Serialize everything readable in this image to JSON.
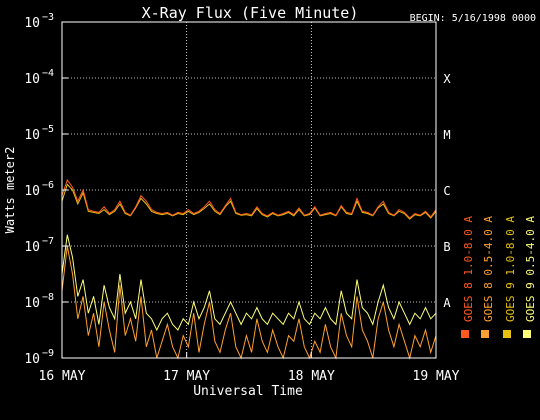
{
  "chart_data": {
    "type": "line",
    "title": "X-Ray Flux (Five Minute)",
    "begin_label": "BEGIN: 5/16/1998 0000",
    "ylabel": "Watts meter2",
    "xlabel": "Universal Time",
    "ylog": true,
    "ylim_exponents": [
      -9,
      -3
    ],
    "y_tick_labels": [
      {
        "exp": -3,
        "text": "10",
        "sup": "−3"
      },
      {
        "exp": -4,
        "text": "10",
        "sup": "−4"
      },
      {
        "exp": -5,
        "text": "10",
        "sup": "−5"
      },
      {
        "exp": -6,
        "text": "10",
        "sup": "−6"
      },
      {
        "exp": -7,
        "text": "10",
        "sup": "−7"
      },
      {
        "exp": -8,
        "text": "10",
        "sup": "−8"
      },
      {
        "exp": -9,
        "text": "10",
        "sup": "−9"
      }
    ],
    "x_tick_labels": [
      "16 MAY",
      "17 MAY",
      "18 MAY",
      "19 MAY"
    ],
    "flare_classes": [
      {
        "label": "X",
        "exp": -4
      },
      {
        "label": "M",
        "exp": -5
      },
      {
        "label": "C",
        "exp": -6
      },
      {
        "label": "B",
        "exp": -7
      },
      {
        "label": "A",
        "exp": -8
      }
    ],
    "grid": true,
    "legend_position": "right",
    "series": [
      {
        "name": "GOES 8 1.0-8.0 A",
        "color": "#ff5a1e",
        "band": "long",
        "sat": "8",
        "log_values": [
          -6.1,
          -5.82,
          -5.95,
          -6.2,
          -6.0,
          -6.35,
          -6.38,
          -6.4,
          -6.3,
          -6.42,
          -6.35,
          -6.2,
          -6.4,
          -6.45,
          -6.3,
          -6.1,
          -6.2,
          -6.35,
          -6.4,
          -6.42,
          -6.4,
          -6.45,
          -6.4,
          -6.42,
          -6.35,
          -6.42,
          -6.38,
          -6.3,
          -6.2,
          -6.35,
          -6.42,
          -6.28,
          -6.15,
          -6.4,
          -6.44,
          -6.42,
          -6.44,
          -6.3,
          -6.42,
          -6.46,
          -6.4,
          -6.45,
          -6.42,
          -6.38,
          -6.44,
          -6.32,
          -6.45,
          -6.42,
          -6.3,
          -6.45,
          -6.42,
          -6.4,
          -6.45,
          -6.28,
          -6.4,
          -6.42,
          -6.15,
          -6.38,
          -6.4,
          -6.45,
          -6.3,
          -6.2,
          -6.4,
          -6.45,
          -6.35,
          -6.4,
          -6.5,
          -6.42,
          -6.45,
          -6.38,
          -6.48,
          -6.35
        ]
      },
      {
        "name": "GOES 8 0.5-4.0 A",
        "color": "#ffa032",
        "band": "short",
        "sat": "8",
        "log_values": [
          -7.8,
          -7.0,
          -7.5,
          -8.3,
          -7.9,
          -8.6,
          -8.2,
          -8.8,
          -8.0,
          -8.5,
          -8.9,
          -7.7,
          -8.6,
          -8.3,
          -8.7,
          -7.9,
          -8.8,
          -8.5,
          -9.0,
          -8.7,
          -8.4,
          -8.8,
          -9.0,
          -8.6,
          -8.8,
          -8.2,
          -8.9,
          -8.4,
          -8.0,
          -8.7,
          -8.9,
          -8.5,
          -8.2,
          -8.8,
          -9.0,
          -8.6,
          -8.9,
          -8.3,
          -8.7,
          -8.9,
          -8.5,
          -8.8,
          -9.0,
          -8.6,
          -8.7,
          -8.3,
          -8.8,
          -9.0,
          -8.7,
          -8.9,
          -8.4,
          -8.8,
          -9.0,
          -8.2,
          -8.6,
          -8.8,
          -7.9,
          -8.5,
          -8.7,
          -9.0,
          -8.3,
          -8.0,
          -8.5,
          -8.8,
          -8.4,
          -8.7,
          -9.0,
          -8.6,
          -8.8,
          -8.5,
          -8.9,
          -8.6
        ]
      },
      {
        "name": "GOES 9 1.0-8.0 A",
        "color": "#e8c010",
        "band": "long",
        "sat": "9",
        "log_values": [
          -6.2,
          -5.9,
          -6.0,
          -6.25,
          -6.05,
          -6.38,
          -6.4,
          -6.42,
          -6.35,
          -6.44,
          -6.38,
          -6.25,
          -6.42,
          -6.46,
          -6.32,
          -6.15,
          -6.25,
          -6.38,
          -6.42,
          -6.44,
          -6.42,
          -6.46,
          -6.42,
          -6.44,
          -6.38,
          -6.44,
          -6.4,
          -6.33,
          -6.25,
          -6.38,
          -6.44,
          -6.3,
          -6.2,
          -6.42,
          -6.45,
          -6.44,
          -6.46,
          -6.33,
          -6.44,
          -6.48,
          -6.42,
          -6.46,
          -6.44,
          -6.4,
          -6.46,
          -6.35,
          -6.46,
          -6.44,
          -6.32,
          -6.46,
          -6.44,
          -6.42,
          -6.46,
          -6.3,
          -6.42,
          -6.44,
          -6.2,
          -6.4,
          -6.42,
          -6.46,
          -6.32,
          -6.25,
          -6.42,
          -6.46,
          -6.38,
          -6.42,
          -6.52,
          -6.44,
          -6.46,
          -6.4,
          -6.5,
          -6.38
        ]
      },
      {
        "name": "GOES 9 0.5-4.0 A",
        "color": "#ffff78",
        "band": "short",
        "sat": "9",
        "log_values": [
          -7.5,
          -6.8,
          -7.2,
          -7.9,
          -7.6,
          -8.2,
          -7.9,
          -8.4,
          -7.7,
          -8.1,
          -8.3,
          -7.5,
          -8.2,
          -8.0,
          -8.3,
          -7.6,
          -8.2,
          -8.3,
          -8.5,
          -8.3,
          -8.2,
          -8.4,
          -8.5,
          -8.3,
          -8.4,
          -8.0,
          -8.3,
          -8.1,
          -7.8,
          -8.3,
          -8.4,
          -8.2,
          -8.0,
          -8.2,
          -8.4,
          -8.2,
          -8.3,
          -8.1,
          -8.3,
          -8.4,
          -8.2,
          -8.3,
          -8.4,
          -8.2,
          -8.3,
          -8.0,
          -8.3,
          -8.4,
          -8.2,
          -8.3,
          -8.1,
          -8.3,
          -8.4,
          -7.8,
          -8.2,
          -8.3,
          -7.6,
          -8.1,
          -8.2,
          -8.4,
          -8.0,
          -7.7,
          -8.1,
          -8.3,
          -8.0,
          -8.2,
          -8.4,
          -8.2,
          -8.3,
          -8.1,
          -8.3,
          -8.2
        ]
      }
    ]
  }
}
